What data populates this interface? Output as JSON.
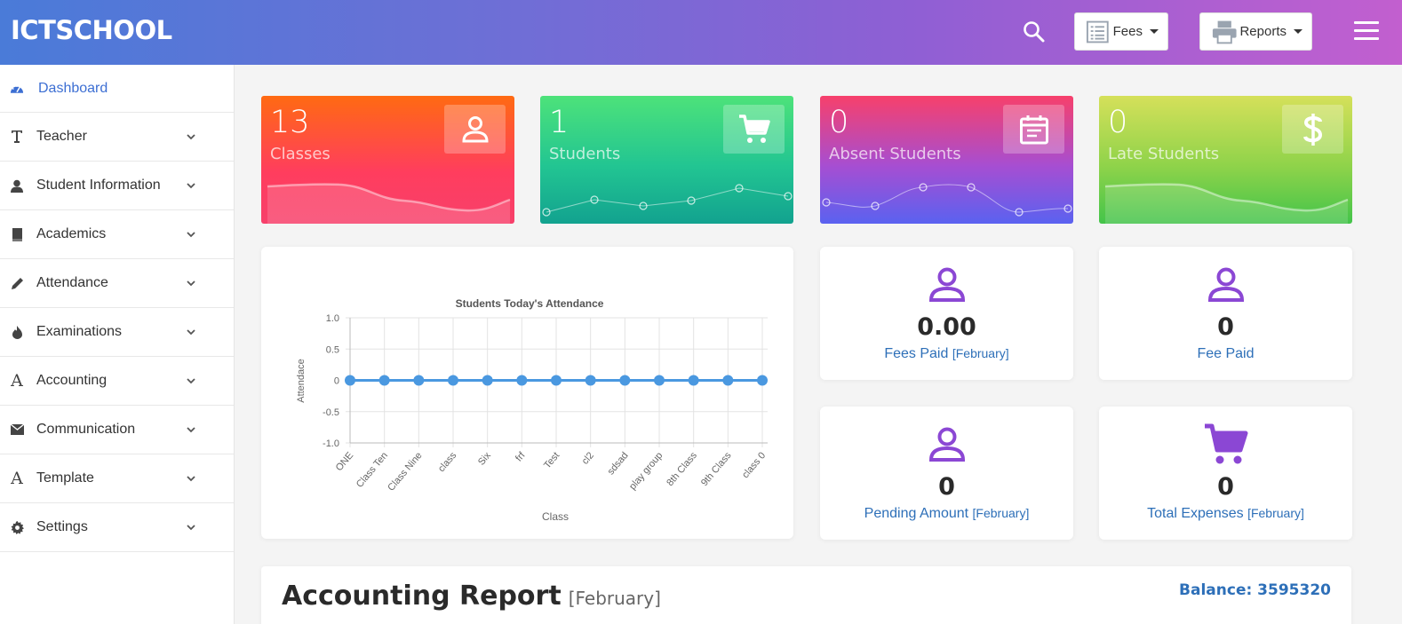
{
  "header": {
    "brand": "ICTSCHOOL",
    "fees_label": "Fees",
    "reports_label": "Reports"
  },
  "sidebar": {
    "items": [
      {
        "label": "Dashboard",
        "icon": "dashboard-icon"
      },
      {
        "label": "Teacher",
        "icon": "text-t-icon"
      },
      {
        "label": "Student Information",
        "icon": "user-icon"
      },
      {
        "label": "Academics",
        "icon": "book-icon"
      },
      {
        "label": "Attendance",
        "icon": "pencil-icon"
      },
      {
        "label": "Examinations",
        "icon": "fire-icon"
      },
      {
        "label": "Accounting",
        "icon": "font-a-icon"
      },
      {
        "label": "Communication",
        "icon": "envelope-icon"
      },
      {
        "label": "Template",
        "icon": "font-a-icon"
      },
      {
        "label": "Settings",
        "icon": "gear-icon"
      }
    ]
  },
  "stats": [
    {
      "value": "13",
      "label": "Classes",
      "icon": "user-icon"
    },
    {
      "value": "1",
      "label": "Students",
      "icon": "cart-icon"
    },
    {
      "value": "0",
      "label": "Absent Students",
      "icon": "calendar-icon"
    },
    {
      "value": "0",
      "label": "Late Students",
      "icon": "dollar-icon"
    }
  ],
  "summary": [
    {
      "value": "0.00",
      "label": "Fees Paid",
      "period": "[February]",
      "icon": "user-icon"
    },
    {
      "value": "0",
      "label": "Fee Paid",
      "period": "",
      "icon": "user-icon"
    },
    {
      "value": "0",
      "label": "Pending Amount",
      "period": "[February]",
      "icon": "user-icon"
    },
    {
      "value": "0",
      "label": "Total Expenses",
      "period": "[February]",
      "icon": "cart-icon"
    }
  ],
  "accounting": {
    "title": "Accounting Report",
    "period": "[February]",
    "balance": "Balance: 3595320"
  },
  "colors": {
    "accent": "#3d6fd3",
    "link": "#2d6fb8",
    "purple_icon": "#8b47d4",
    "line": "#4a98e0"
  },
  "chart_data": {
    "type": "line",
    "title": "Students Today's Attendance",
    "xlabel": "Class",
    "ylabel": "Attendace",
    "categories": [
      "ONE",
      "Class Ten",
      "Class Nine",
      "class",
      "Six",
      "frf",
      "Test",
      "cl2",
      "sdsad",
      "play group",
      "8th Class",
      "9th Class",
      "class 0"
    ],
    "values": [
      0,
      0,
      0,
      0,
      0,
      0,
      0,
      0,
      0,
      0,
      0,
      0,
      0
    ],
    "ylim": [
      -1.0,
      1.0
    ],
    "yticks": [
      "1.0",
      "0.5",
      "0",
      "-0.5",
      "-1.0"
    ],
    "grid": true
  }
}
